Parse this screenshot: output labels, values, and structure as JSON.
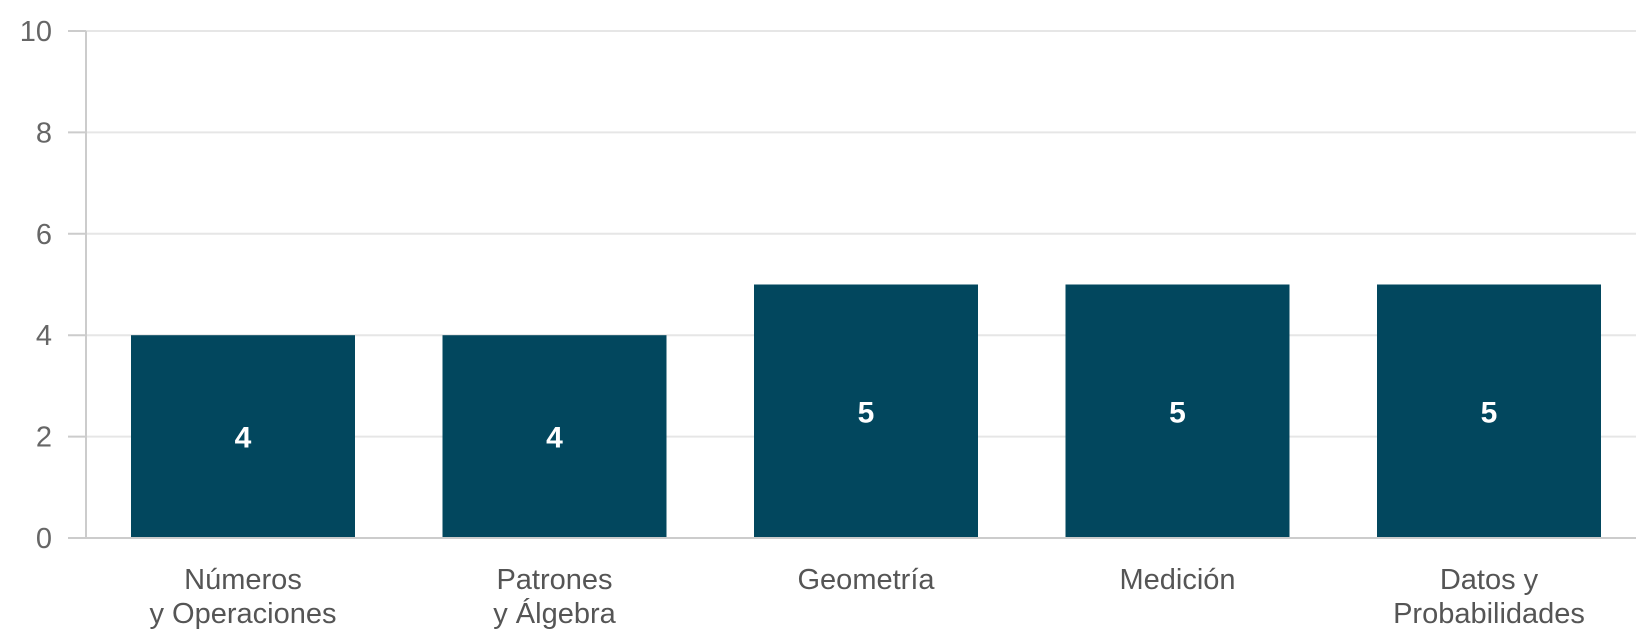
{
  "chart_data": {
    "type": "bar",
    "categories": [
      [
        "Números",
        "y Operaciones"
      ],
      [
        "Patrones",
        "y Álgebra"
      ],
      [
        "Geometría"
      ],
      [
        "Medición"
      ],
      [
        "Datos y",
        "Probabilidades"
      ]
    ],
    "values": [
      4,
      4,
      5,
      5,
      5
    ],
    "data_labels": [
      "4",
      "4",
      "5",
      "5",
      "5"
    ],
    "y_ticks": [
      0,
      2,
      4,
      6,
      8,
      10
    ],
    "ylim": [
      0,
      10
    ],
    "title": "",
    "xlabel": "",
    "ylabel": "",
    "grid": true,
    "legend": "none",
    "colors": {
      "bar": "#02475e",
      "grid": "#e6e6e6",
      "axis": "#cccccc",
      "data_label": "#ffffff"
    }
  }
}
